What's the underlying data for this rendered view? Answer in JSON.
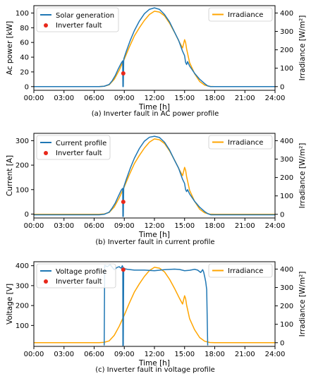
{
  "colors": {
    "blue": "#1f77b4",
    "orange": "#ffa500",
    "red": "#e8281b",
    "axis": "#000000"
  },
  "chart_data": [
    {
      "type": "line",
      "caption": "(a) Inverter fault in AC power profile",
      "xlabel": "Time [h]",
      "ylabel": "Ac power [kW]",
      "ylabel_right": "Irradiance [W/m²]",
      "x_ticks": [
        "00:00",
        "03:00",
        "06:00",
        "09:00",
        "12:00",
        "15:00",
        "18:00",
        "21:00",
        "24:00"
      ],
      "xlim": [
        0,
        24
      ],
      "ylim": [
        -5,
        110
      ],
      "y_ticks": [
        0,
        20,
        40,
        60,
        80,
        100
      ],
      "y2lim": [
        -20,
        440
      ],
      "y2_ticks": [
        0,
        100,
        200,
        300,
        400
      ],
      "legend_left": "top-left",
      "legend_right": "top-right",
      "series": [
        {
          "name": "Solar generation",
          "axis": "left",
          "color": "#1f77b4",
          "x": [
            0,
            6.5,
            7,
            7.5,
            7.8,
            8.1,
            8.4,
            8.7,
            8.84,
            8.86,
            8.9,
            8.94,
            8.96,
            9.2,
            9.6,
            10,
            10.5,
            11,
            11.5,
            12,
            12.5,
            13,
            13.5,
            14,
            14.4,
            14.8,
            15,
            15.1,
            15.2,
            15.3,
            15.5,
            16,
            16.5,
            17,
            17.3,
            17.6,
            18,
            24
          ],
          "y": [
            0,
            0,
            0.5,
            3,
            8,
            15,
            24,
            32,
            35,
            0,
            0,
            35,
            38,
            48,
            63,
            76,
            89,
            99,
            105,
            107,
            105,
            98,
            88,
            74,
            63,
            48,
            42,
            33,
            30,
            34,
            28,
            18,
            10,
            4,
            1,
            0,
            0,
            0
          ]
        },
        {
          "name": "Inverter fault",
          "axis": "left",
          "color": "#e8281b",
          "kind": "marker",
          "x": [
            8.9
          ],
          "y": [
            18
          ]
        },
        {
          "name": "Irradiance",
          "axis": "right",
          "color": "#ffa500",
          "x": [
            0,
            6.5,
            7,
            7.5,
            8,
            8.5,
            9,
            9.5,
            10,
            10.5,
            11,
            11.5,
            12,
            12.5,
            13,
            13.5,
            14,
            14.5,
            14.8,
            15,
            15.1,
            15.2,
            15.3,
            15.5,
            16,
            16.5,
            17,
            17.5,
            18,
            24
          ],
          "y": [
            0,
            0,
            2,
            10,
            40,
            90,
            150,
            215,
            275,
            320,
            360,
            392,
            410,
            405,
            385,
            345,
            295,
            240,
            210,
            255,
            240,
            205,
            180,
            130,
            70,
            28,
            8,
            1,
            0,
            0
          ]
        }
      ]
    },
    {
      "type": "line",
      "caption": "(b) Inverter fault in current profile",
      "xlabel": "Time [h]",
      "ylabel": "Current [A]",
      "ylabel_right": "Irradiance [W/m²]",
      "x_ticks": [
        "00:00",
        "03:00",
        "06:00",
        "09:00",
        "12:00",
        "15:00",
        "18:00",
        "21:00",
        "24:00"
      ],
      "xlim": [
        0,
        24
      ],
      "ylim": [
        -16,
        330
      ],
      "y_ticks": [
        0,
        100,
        200,
        300
      ],
      "y2lim": [
        -20,
        440
      ],
      "y2_ticks": [
        0,
        100,
        200,
        300,
        400
      ],
      "legend_left": "top-left",
      "legend_right": "top-right",
      "series": [
        {
          "name": "Current profile",
          "axis": "left",
          "color": "#1f77b4",
          "x": [
            0,
            6.5,
            7,
            7.5,
            7.8,
            8.1,
            8.4,
            8.7,
            8.84,
            8.86,
            8.9,
            8.94,
            8.96,
            9.2,
            9.6,
            10,
            10.5,
            11,
            11.5,
            12,
            12.5,
            13,
            13.5,
            14,
            14.4,
            14.8,
            15,
            15.1,
            15.2,
            15.3,
            15.5,
            16,
            16.5,
            17,
            17.3,
            17.6,
            18,
            24
          ],
          "y": [
            -3,
            -3,
            -1,
            8,
            25,
            45,
            72,
            98,
            105,
            -10,
            -10,
            105,
            112,
            142,
            188,
            228,
            268,
            298,
            314,
            318,
            313,
            294,
            262,
            220,
            188,
            142,
            125,
            100,
            92,
            100,
            82,
            52,
            28,
            10,
            2,
            -3,
            -3,
            -3
          ]
        },
        {
          "name": "Inverter fault",
          "axis": "left",
          "color": "#e8281b",
          "kind": "marker",
          "x": [
            8.9
          ],
          "y": [
            50
          ]
        },
        {
          "name": "Irradiance",
          "axis": "right",
          "color": "#ffa500",
          "x": [
            0,
            6.5,
            7,
            7.5,
            8,
            8.5,
            9,
            9.5,
            10,
            10.5,
            11,
            11.5,
            12,
            12.5,
            13,
            13.5,
            14,
            14.5,
            14.8,
            15,
            15.1,
            15.2,
            15.3,
            15.5,
            16,
            16.5,
            17,
            17.5,
            18,
            24
          ],
          "y": [
            0,
            0,
            2,
            10,
            40,
            90,
            150,
            215,
            275,
            320,
            360,
            392,
            410,
            405,
            385,
            345,
            295,
            240,
            210,
            255,
            240,
            205,
            180,
            130,
            70,
            28,
            8,
            1,
            0,
            0
          ]
        }
      ]
    },
    {
      "type": "line",
      "caption": "(c) Inverter fault in voltage profile",
      "xlabel": "Time [h]",
      "ylabel": "Voltage [V]",
      "ylabel_right": "Irradiance [W/m²]",
      "x_ticks": [
        "00:00",
        "03:00",
        "06:00",
        "09:00",
        "12:00",
        "15:00",
        "18:00",
        "21:00",
        "24:00"
      ],
      "xlim": [
        0,
        24
      ],
      "ylim": [
        -5,
        420
      ],
      "y_ticks": [
        100,
        200,
        300,
        400
      ],
      "y2lim": [
        -20,
        440
      ],
      "y2_ticks": [
        0,
        100,
        200,
        300,
        400
      ],
      "legend_left": "top-left",
      "legend_right": "top-right",
      "series": [
        {
          "name": "Voltage profile",
          "axis": "left",
          "color": "#1f77b4",
          "x": [
            7.0,
            7.05,
            7.3,
            7.6,
            8.0,
            8.3,
            8.5,
            8.6,
            8.7,
            8.8,
            8.85,
            8.86,
            8.9,
            8.94,
            8.95,
            9.0,
            9.3,
            10,
            11,
            12,
            13,
            14,
            14.5,
            15,
            15.5,
            16,
            16.3,
            16.6,
            16.8,
            16.9,
            17.0,
            17.1,
            17.2,
            17.3
          ],
          "y": [
            0,
            402,
            395,
            405,
            380,
            392,
            395,
            390,
            388,
            400,
            395,
            0,
            0,
            375,
            390,
            385,
            382,
            378,
            378,
            375,
            380,
            383,
            381,
            375,
            377,
            382,
            378,
            366,
            380,
            368,
            345,
            320,
            280,
            0
          ]
        },
        {
          "name": "Inverter fault",
          "axis": "left",
          "color": "#e8281b",
          "kind": "marker",
          "x": [
            8.9
          ],
          "y": [
            380
          ]
        },
        {
          "name": "Irradiance",
          "axis": "right",
          "color": "#ffa500",
          "x": [
            0,
            6.5,
            7,
            7.5,
            8,
            8.5,
            9,
            9.5,
            10,
            10.5,
            11,
            11.5,
            12,
            12.5,
            13,
            13.5,
            14,
            14.5,
            14.8,
            15,
            15.1,
            15.2,
            15.3,
            15.5,
            16,
            16.5,
            17,
            17.5,
            18,
            24
          ],
          "y": [
            0,
            0,
            2,
            10,
            40,
            90,
            150,
            215,
            275,
            320,
            360,
            392,
            410,
            405,
            385,
            345,
            295,
            240,
            210,
            255,
            240,
            205,
            180,
            130,
            70,
            28,
            8,
            1,
            0,
            0
          ]
        }
      ]
    }
  ]
}
